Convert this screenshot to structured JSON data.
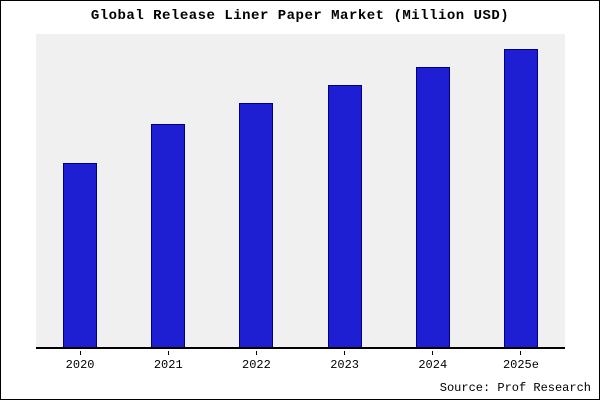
{
  "title": "Global Release Liner Paper Market (Million USD)",
  "source": "Source: Prof Research",
  "chart_data": {
    "type": "bar",
    "categories": [
      "2020",
      "2021",
      "2022",
      "2023",
      "2024",
      "2025e"
    ],
    "values": [
      62,
      75,
      82,
      88,
      94,
      100
    ],
    "title": "Global Release Liner Paper Market (Million USD)",
    "xlabel": "",
    "ylabel": "",
    "ylim": [
      0,
      105
    ],
    "grid": false,
    "legend": false,
    "bar_color": "#1e1ed2",
    "bar_border_color": "#000082",
    "plot_background": "#f0f0f0",
    "outer_background": "#ffffff",
    "source_note": "Source: Prof Research"
  }
}
